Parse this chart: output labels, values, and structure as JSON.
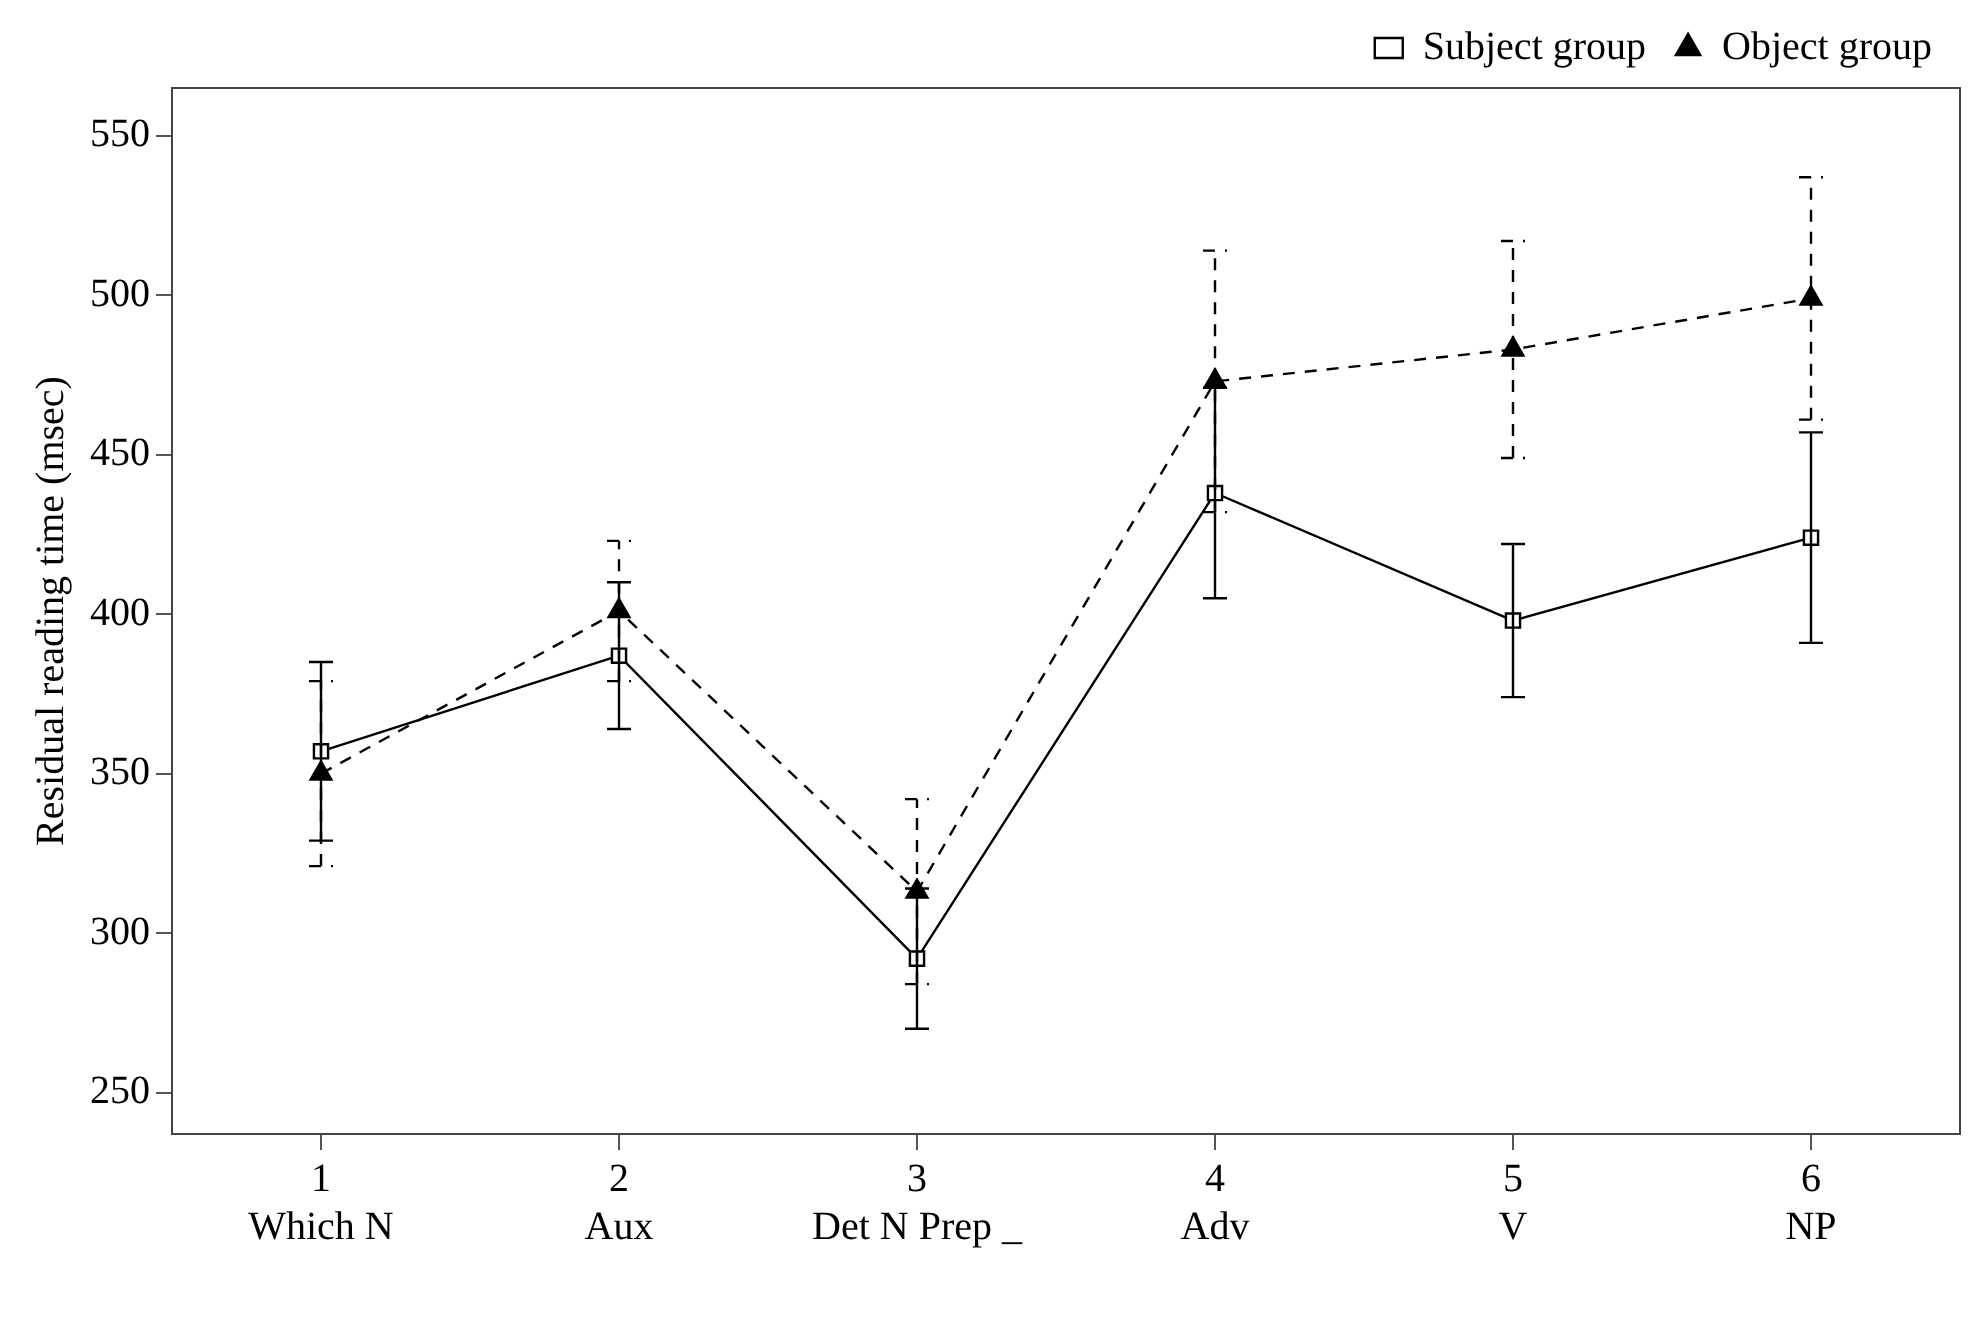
{
  "chart_data": {
    "type": "line",
    "ylabel": "Residual reading time (msec)",
    "x": [
      1,
      2,
      3,
      4,
      5,
      6
    ],
    "xlim": [
      0.5,
      6.5
    ],
    "xticks": [
      {
        "value": 1,
        "label": "1\nWhich N"
      },
      {
        "value": 2,
        "label": "2\nAux"
      },
      {
        "value": 3,
        "label": "3\nDet N Prep _"
      },
      {
        "value": 4,
        "label": "4\nAdv"
      },
      {
        "value": 5,
        "label": "5\nV"
      },
      {
        "value": 6,
        "label": "6\nNP"
      }
    ],
    "ylim": [
      237,
      565
    ],
    "yticks": [
      250,
      300,
      350,
      400,
      450,
      500,
      550
    ],
    "series": [
      {
        "name": "Subject group",
        "color": "#000000",
        "values": [
          357,
          387,
          292,
          438,
          398,
          424
        ],
        "errors": [
          28,
          23,
          22,
          33,
          24,
          33
        ],
        "marker": "square",
        "line_style": "solid"
      },
      {
        "name": "Object group",
        "color": "#000000",
        "values": [
          350,
          401,
          313,
          473,
          483,
          499
        ],
        "errors": [
          29,
          22,
          29,
          41,
          34,
          38
        ],
        "marker": "triangle",
        "line_style": "dashed"
      }
    ],
    "grid": false,
    "legend": "top right"
  }
}
